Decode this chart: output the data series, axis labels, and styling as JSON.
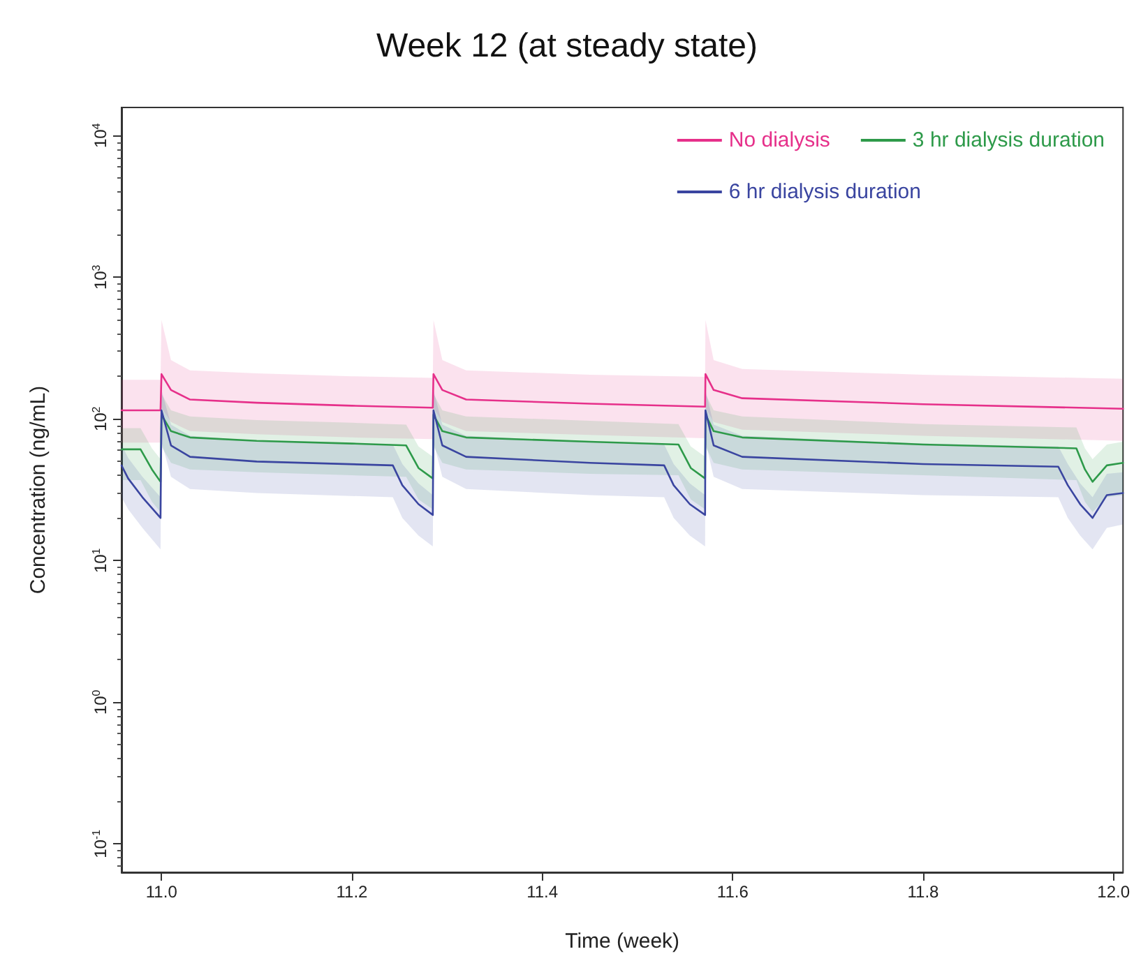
{
  "chart_data": {
    "type": "line",
    "title": "Week 12 (at steady state)",
    "xlabel": "Time (week)",
    "ylabel": "Concentration (ng/mL)",
    "log": "y",
    "xlim": [
      10.958,
      12.01
    ],
    "ylim": [
      0.063,
      15800
    ],
    "xticks": [
      {
        "value": 11,
        "label": "11.0"
      },
      {
        "value": 11.2,
        "label": "11.2"
      },
      {
        "value": 11.4,
        "label": "11.4"
      },
      {
        "value": 11.6,
        "label": "11.6"
      },
      {
        "value": 11.8,
        "label": "11.8"
      },
      {
        "value": 12,
        "label": "12.0"
      }
    ],
    "yticks": [
      {
        "value": 0.1,
        "label": "10$^{-1}$"
      },
      {
        "value": 1,
        "label": "10$^{0}$"
      },
      {
        "value": 10,
        "label": "10$^{1}$"
      },
      {
        "value": 100,
        "label": "10$^{2}$"
      },
      {
        "value": 1000,
        "label": "10$^{3}$"
      },
      {
        "value": 10000,
        "label": "10$^{4}$"
      }
    ],
    "grid": false,
    "legend": "top right",
    "marker": "none",
    "line_style": "solid",
    "series": [
      {
        "name": "No dialysis",
        "color": "#e6308a",
        "x": [
          10.958,
          10.999,
          11.0,
          11.01,
          11.03,
          11.1,
          11.2,
          11.285,
          11.2857,
          11.295,
          11.32,
          11.45,
          11.571,
          11.5714,
          11.58,
          11.61,
          11.8,
          12.01
        ],
        "values": [
          115,
          115,
          207,
          160,
          137,
          130,
          124,
          120,
          207,
          160,
          137,
          128,
          122,
          207,
          160,
          140,
          127,
          118
        ],
        "upper": [
          189,
          189,
          500,
          260,
          220,
          210,
          200,
          195,
          500,
          260,
          220,
          205,
          198,
          500,
          260,
          225,
          205,
          192
        ],
        "lower": [
          68,
          68,
          120,
          95,
          82,
          78,
          74,
          72,
          120,
          95,
          82,
          77,
          73,
          120,
          95,
          84,
          76,
          70
        ]
      },
      {
        "name": "3 hr dialysis duration",
        "color": "#2e9a4a",
        "x": [
          10.958,
          10.978,
          10.99,
          10.999,
          11.0,
          11.01,
          11.03,
          11.1,
          11.2,
          11.257,
          11.27,
          11.285,
          11.2857,
          11.295,
          11.32,
          11.45,
          11.543,
          11.556,
          11.571,
          11.5714,
          11.58,
          11.61,
          11.8,
          11.961,
          11.97,
          11.978,
          11.993,
          12.01
        ],
        "values": [
          61,
          61,
          44,
          36,
          107,
          82,
          74,
          70,
          67,
          65,
          45,
          38,
          107,
          82,
          74,
          69,
          66,
          45,
          38,
          107,
          82,
          74,
          66,
          62,
          44,
          36,
          47,
          49
        ],
        "upper": [
          86,
          86,
          62,
          52,
          150,
          115,
          104,
          98,
          94,
          91,
          64,
          54,
          150,
          115,
          104,
          97,
          92,
          64,
          54,
          150,
          115,
          104,
          92,
          87,
          62,
          52,
          66,
          69
        ],
        "lower": [
          37,
          37,
          26,
          22,
          64,
          49,
          44,
          42,
          40,
          39,
          27,
          23,
          64,
          49,
          44,
          41,
          40,
          27,
          23,
          64,
          49,
          44,
          40,
          37,
          26,
          22,
          28,
          29
        ]
      },
      {
        "name": "6 hr dialysis duration",
        "color": "#3a45a0",
        "x": [
          10.958,
          10.965,
          10.98,
          10.999,
          11.0,
          11.01,
          11.03,
          11.1,
          11.243,
          11.253,
          11.27,
          11.285,
          11.2857,
          11.295,
          11.32,
          11.45,
          11.528,
          11.538,
          11.555,
          11.571,
          11.5714,
          11.58,
          11.61,
          11.8,
          11.942,
          11.952,
          11.965,
          11.978,
          11.993,
          12.01
        ],
        "values": [
          47,
          38,
          28,
          20,
          115,
          65,
          54,
          50,
          47,
          34,
          25,
          21,
          115,
          65,
          54,
          49,
          47,
          34,
          25,
          21,
          115,
          65,
          54,
          48,
          46,
          34,
          25,
          20,
          29,
          30
        ],
        "upper": [
          66,
          53,
          39,
          28,
          160,
          91,
          76,
          70,
          66,
          48,
          35,
          29,
          160,
          91,
          76,
          69,
          66,
          48,
          35,
          29,
          160,
          91,
          76,
          67,
          64,
          48,
          35,
          28,
          41,
          42
        ],
        "lower": [
          28,
          23,
          17,
          12,
          69,
          39,
          32,
          30,
          28,
          20,
          15,
          12.6,
          69,
          39,
          32,
          29,
          28,
          20,
          15,
          12.6,
          69,
          39,
          32,
          29,
          28,
          20,
          15,
          12,
          17,
          18
        ]
      }
    ]
  }
}
